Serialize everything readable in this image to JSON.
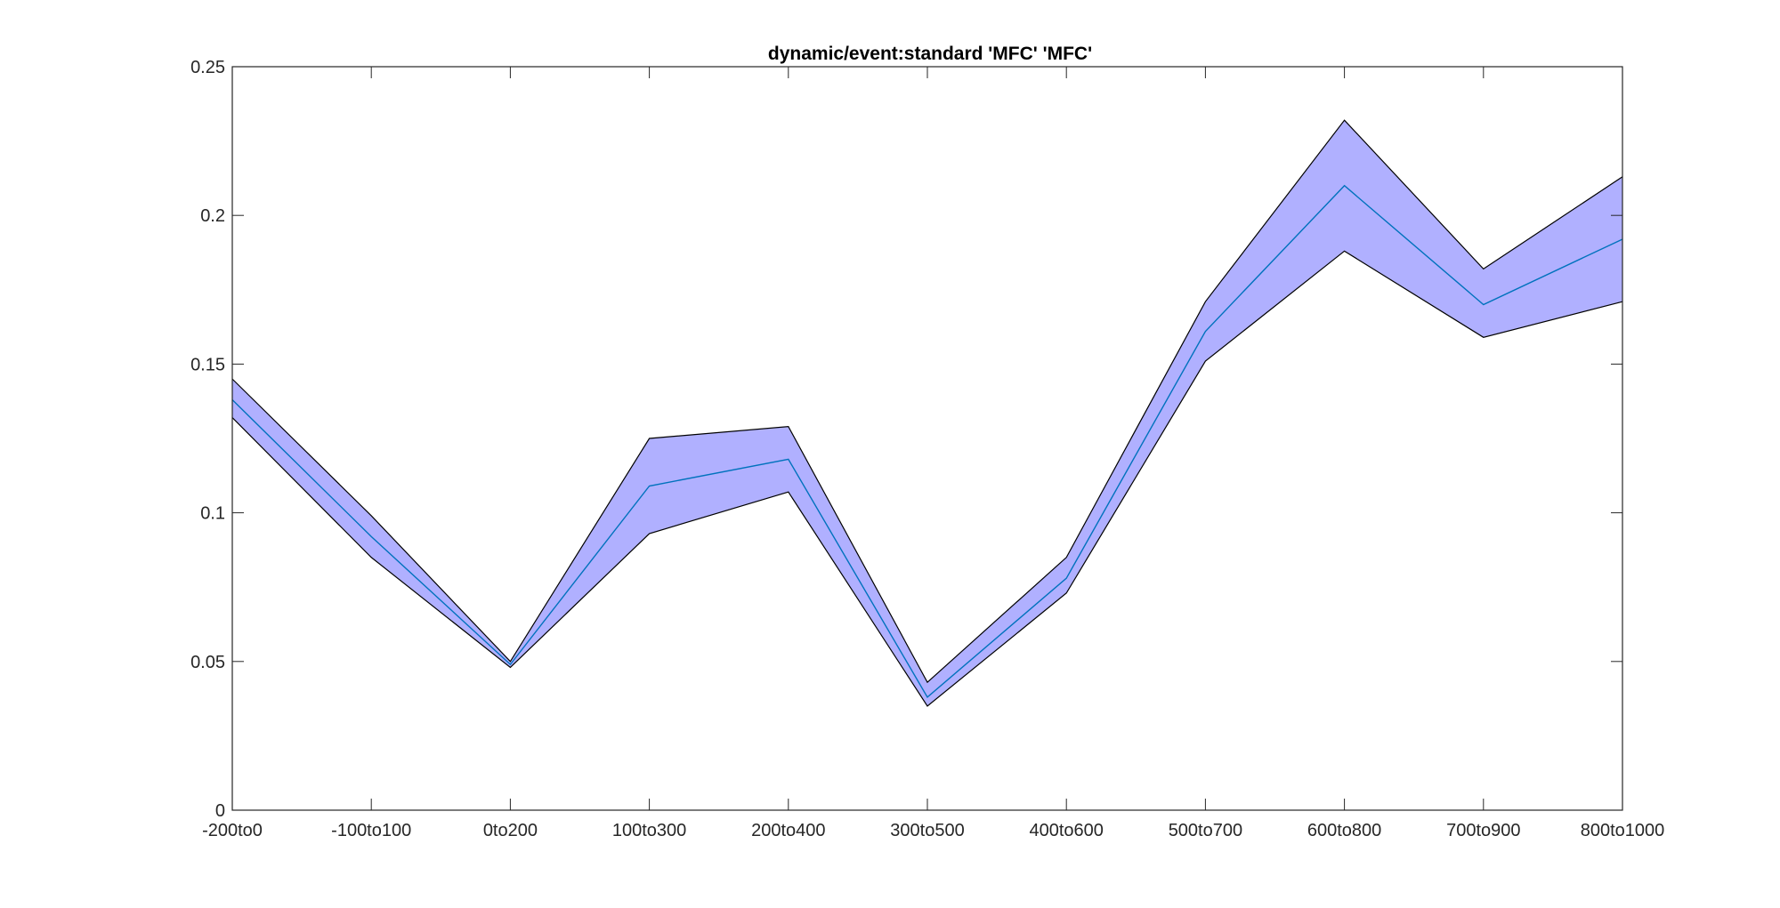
{
  "chart_data": {
    "type": "area",
    "title": "dynamic/event:standard 'MFC'  'MFC'",
    "xlabel": "",
    "ylabel": "",
    "categories": [
      "-200to0",
      "-100to100",
      "0to200",
      "100to300",
      "200to400",
      "300to500",
      "400to600",
      "500to700",
      "600to800",
      "700to900",
      "800to1000"
    ],
    "series": [
      {
        "role": "mean",
        "values": [
          0.138,
          0.092,
          0.049,
          0.109,
          0.118,
          0.038,
          0.078,
          0.161,
          0.21,
          0.17,
          0.192
        ]
      },
      {
        "role": "upper",
        "values": [
          0.145,
          0.099,
          0.05,
          0.125,
          0.129,
          0.043,
          0.085,
          0.171,
          0.232,
          0.182,
          0.213
        ]
      },
      {
        "role": "lower",
        "values": [
          0.132,
          0.085,
          0.048,
          0.093,
          0.107,
          0.035,
          0.073,
          0.151,
          0.188,
          0.159,
          0.171
        ]
      }
    ],
    "ylim": [
      0,
      0.25
    ],
    "yticks": [
      "0",
      "0.05",
      "0.1",
      "0.15",
      "0.2",
      "0.25"
    ],
    "grid": false,
    "legend": "none",
    "colors": {
      "band_fill": "#b0b0ff",
      "band_edge": "#000000",
      "mean_line": "#0072bd",
      "axis": "#262626"
    }
  }
}
